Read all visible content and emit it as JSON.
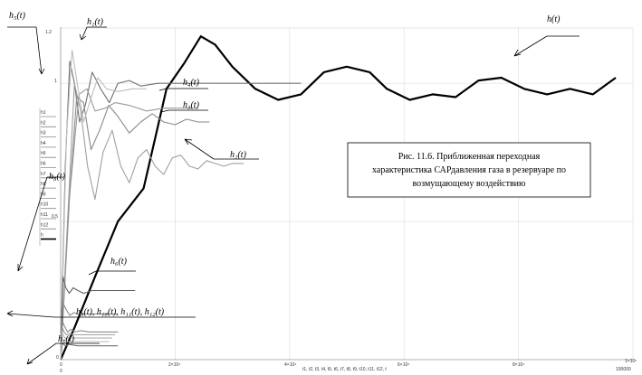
{
  "chart_data": {
    "type": "line",
    "x_scale_labels": [
      "0",
      "2×10⁴",
      "4×10⁴",
      "6×10⁴",
      "8×10⁴",
      "1×10⁵"
    ],
    "y_scale_labels": [
      "0",
      "0.5",
      "1",
      "1.2"
    ],
    "xlim": [
      0,
      100000
    ],
    "ylim": [
      0,
      1.2
    ],
    "xlabel": "t1, t2, t3, t4, t5, t6, t7, t8, t9, t10, t11, t12, t",
    "x_end_label": "100000",
    "x_start_label": "0",
    "legend": [
      "h1",
      "h2",
      "h3",
      "h4",
      "h5",
      "h6",
      "h7",
      "h8",
      "h9",
      "h10",
      "h11",
      "h12",
      "h"
    ],
    "caption": "Рис. 11.6. Приближенная переходная характеристика САРдавления газа в резервуаре по возмущающему воздействию",
    "annotations": {
      "h": "h(t)",
      "h1": "h₁(t)",
      "h2": "h₂(t)",
      "h3": "h₃(t)",
      "h4": "h₄(t)",
      "h5": "h₅(t)",
      "h6": "h₆(t)",
      "h7": "h₇(t)",
      "h8": "h₈(t)",
      "h9_12": "h₉(t), h₁₀(t), h₁₁(t), h₁₂(t)"
    },
    "series": [
      {
        "name": "h",
        "color": "#000000",
        "x": [
          0,
          2500,
          6000,
          10000,
          14500,
          18500,
          21500,
          24500,
          27000,
          30000,
          34000,
          38000,
          42000,
          46000,
          50000,
          54000,
          57000,
          61000,
          65000,
          69000,
          73000,
          77000,
          81000,
          85000,
          89000,
          93000,
          97000
        ],
        "y": [
          0,
          0.12,
          0.3,
          0.5,
          0.62,
          0.98,
          1.07,
          1.17,
          1.14,
          1.06,
          0.98,
          0.94,
          0.96,
          1.04,
          1.06,
          1.04,
          0.98,
          0.94,
          0.96,
          0.95,
          1.01,
          1.02,
          0.98,
          0.96,
          0.98,
          0.96,
          1.02
        ]
      },
      {
        "name": "h1",
        "color": "#707070",
        "x": [
          0,
          800,
          1600,
          2400,
          3300,
          4300,
          5500,
          7000,
          8500,
          10000,
          12000,
          14000,
          17000,
          21000,
          26000,
          33000,
          42000
        ],
        "y": [
          0,
          0.7,
          1.08,
          1.0,
          0.86,
          0.92,
          1.04,
          0.98,
          0.93,
          1.0,
          1.01,
          0.99,
          1.0,
          1.0,
          1.0,
          1.0,
          1.0
        ]
      },
      {
        "name": "h2",
        "color": "#a0a0a0",
        "x": [
          0,
          1200,
          2400,
          3500,
          4700,
          6000,
          7400,
          9000,
          10500,
          12000,
          13500,
          15000,
          16500,
          18000,
          19500,
          21000,
          22500,
          24000,
          25500,
          27000,
          28500,
          30000,
          32000
        ],
        "y": [
          0,
          0.5,
          1.0,
          0.9,
          0.7,
          0.58,
          0.75,
          0.83,
          0.7,
          0.64,
          0.73,
          0.76,
          0.7,
          0.67,
          0.73,
          0.74,
          0.7,
          0.69,
          0.72,
          0.71,
          0.7,
          0.71,
          0.71
        ]
      },
      {
        "name": "h3",
        "color": "#8a8a8a",
        "x": [
          0,
          1400,
          2800,
          4000,
          5300,
          6800,
          8400,
          10000,
          12000,
          14000,
          16000,
          18000,
          20000,
          22000,
          24000,
          26000
        ],
        "y": [
          0,
          0.55,
          0.95,
          0.93,
          0.76,
          0.83,
          0.92,
          0.88,
          0.82,
          0.86,
          0.89,
          0.86,
          0.85,
          0.87,
          0.86,
          0.86
        ]
      },
      {
        "name": "h4",
        "color": "#9a9a9a",
        "x": [
          0,
          1600,
          3200,
          4600,
          6000,
          7800,
          9500,
          12000,
          15000,
          18000,
          21000,
          24000
        ],
        "y": [
          0,
          0.6,
          0.96,
          0.98,
          0.9,
          0.91,
          0.93,
          0.92,
          0.9,
          0.91,
          0.91,
          0.91
        ]
      },
      {
        "name": "h5",
        "color": "#bdbdbd",
        "x": [
          0,
          1000,
          2000,
          2900,
          4000,
          5200,
          6500,
          8000,
          10000,
          12500,
          15000
        ],
        "y": [
          0,
          0.8,
          1.12,
          1.0,
          0.86,
          0.94,
          1.02,
          0.98,
          0.97,
          0.98,
          0.98
        ]
      },
      {
        "name": "h6",
        "color": "#606060",
        "x": [
          0,
          400,
          900,
          1500,
          2200,
          3000,
          4000,
          5500,
          7500,
          10000,
          13000
        ],
        "y": [
          0,
          0.3,
          0.26,
          0.24,
          0.26,
          0.25,
          0.24,
          0.25,
          0.25,
          0.25,
          0.25
        ]
      },
      {
        "name": "h7",
        "color": "#707070",
        "x": [
          0,
          300,
          800,
          1500,
          3000,
          6000,
          10000
        ],
        "y": [
          0,
          0.06,
          0.05,
          0.055,
          0.05,
          0.05,
          0.05
        ]
      },
      {
        "name": "h8",
        "color": "#8c8c8c",
        "x": [
          0,
          500,
          1000,
          1600,
          2300,
          3000,
          4000,
          5500,
          7500,
          10000
        ],
        "y": [
          0,
          0.2,
          0.18,
          0.16,
          0.17,
          0.165,
          0.165,
          0.165,
          0.165,
          0.165
        ]
      },
      {
        "name": "h9",
        "color": "#8c8c8c",
        "x": [
          0,
          300,
          700,
          1200,
          1800,
          2500,
          3500,
          5000,
          7000,
          10000
        ],
        "y": [
          0,
          0.14,
          0.12,
          0.1,
          0.11,
          0.1,
          0.105,
          0.1,
          0.1,
          0.1
        ]
      },
      {
        "name": "h10",
        "color": "#a0a0a0",
        "x": [
          0,
          250,
          600,
          1000,
          1600,
          2300,
          3300,
          4800,
          7000,
          9500
        ],
        "y": [
          0,
          0.12,
          0.1,
          0.09,
          0.095,
          0.09,
          0.09,
          0.09,
          0.09,
          0.09
        ]
      },
      {
        "name": "h11",
        "color": "#b0b0b0",
        "x": [
          0,
          200,
          500,
          900,
          1400,
          2000,
          3000,
          4500,
          6500,
          9000
        ],
        "y": [
          0,
          0.1,
          0.085,
          0.075,
          0.08,
          0.078,
          0.078,
          0.078,
          0.078,
          0.078
        ]
      },
      {
        "name": "h12",
        "color": "#c0c0c0",
        "x": [
          0,
          150,
          400,
          800,
          1200,
          1800,
          2800,
          4200,
          6000,
          8500
        ],
        "y": [
          0,
          0.08,
          0.07,
          0.06,
          0.065,
          0.065,
          0.065,
          0.065,
          0.065,
          0.065
        ]
      }
    ],
    "grid": true
  }
}
